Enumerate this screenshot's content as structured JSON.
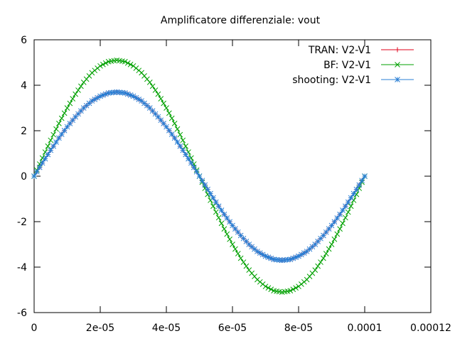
{
  "chart_data": {
    "type": "line",
    "title": "Amplificatore differenziale: vout",
    "xlabel": "",
    "ylabel": "",
    "xlim": [
      0,
      0.00012
    ],
    "ylim": [
      -6,
      6
    ],
    "x_ticks": [
      {
        "value": 0,
        "label": "0"
      },
      {
        "value": 2e-05,
        "label": "2e-05"
      },
      {
        "value": 4e-05,
        "label": "4e-05"
      },
      {
        "value": 6e-05,
        "label": "6e-05"
      },
      {
        "value": 8e-05,
        "label": "8e-05"
      },
      {
        "value": 0.0001,
        "label": "0.0001"
      },
      {
        "value": 0.00012,
        "label": "0.00012"
      }
    ],
    "y_ticks": [
      {
        "value": -6,
        "label": "-6"
      },
      {
        "value": -4,
        "label": "-4"
      },
      {
        "value": -2,
        "label": "-2"
      },
      {
        "value": 0,
        "label": "0"
      },
      {
        "value": 2,
        "label": "2"
      },
      {
        "value": 4,
        "label": "4"
      },
      {
        "value": 6,
        "label": "6"
      }
    ],
    "grid": false,
    "legend_position": "top-right",
    "series": [
      {
        "name": "TRAN: V2-V1",
        "color": "#e0001a",
        "marker": "plus",
        "x": [
          0,
          2.5e-06,
          5e-06,
          7.5e-06,
          1e-05,
          1.25e-05,
          1.5e-05,
          1.75e-05,
          2e-05,
          2.25e-05,
          2.5e-05,
          2.75e-05,
          3e-05,
          3.25e-05,
          3.5e-05,
          3.75e-05,
          4e-05,
          4.25e-05,
          4.5e-05,
          4.75e-05,
          5e-05,
          5.25e-05,
          5.5e-05,
          5.75e-05,
          6e-05,
          6.25e-05,
          6.5e-05,
          6.75e-05,
          7e-05,
          7.25e-05,
          7.5e-05,
          7.75e-05,
          8e-05,
          8.25e-05,
          8.5e-05,
          8.75e-05,
          9e-05,
          9.25e-05,
          9.5e-05,
          9.75e-05,
          0.0001
        ],
        "y": [
          0,
          0.58,
          1.14,
          1.68,
          2.17,
          2.61,
          3.0,
          3.31,
          3.52,
          3.66,
          3.7,
          3.66,
          3.52,
          3.31,
          3.0,
          2.61,
          2.17,
          1.68,
          1.14,
          0.58,
          0,
          -0.58,
          -1.14,
          -1.68,
          -2.17,
          -2.61,
          -3.0,
          -3.31,
          -3.52,
          -3.66,
          -3.7,
          -3.66,
          -3.52,
          -3.31,
          -3.0,
          -2.61,
          -2.17,
          -1.68,
          -1.14,
          -0.58,
          0
        ]
      },
      {
        "name": "BF: V2-V1",
        "color": "#00a000",
        "marker": "cross",
        "x": [
          0,
          2.5e-06,
          5e-06,
          7.5e-06,
          1e-05,
          1.25e-05,
          1.5e-05,
          1.75e-05,
          2e-05,
          2.25e-05,
          2.5e-05,
          2.75e-05,
          3e-05,
          3.25e-05,
          3.5e-05,
          3.75e-05,
          4e-05,
          4.25e-05,
          4.5e-05,
          4.75e-05,
          5e-05,
          5.25e-05,
          5.5e-05,
          5.75e-05,
          6e-05,
          6.25e-05,
          6.5e-05,
          6.75e-05,
          7e-05,
          7.25e-05,
          7.5e-05,
          7.75e-05,
          8e-05,
          8.25e-05,
          8.5e-05,
          8.75e-05,
          9e-05,
          9.25e-05,
          9.5e-05,
          9.75e-05,
          0.0001
        ],
        "y": [
          0,
          0.8,
          1.58,
          2.32,
          3.0,
          3.61,
          4.13,
          4.55,
          4.85,
          5.04,
          5.1,
          5.04,
          4.85,
          4.55,
          4.13,
          3.61,
          3.0,
          2.32,
          1.58,
          0.8,
          0,
          -0.8,
          -1.58,
          -2.32,
          -3.0,
          -3.61,
          -4.13,
          -4.55,
          -4.85,
          -5.04,
          -5.1,
          -5.04,
          -4.85,
          -4.55,
          -4.13,
          -3.61,
          -3.0,
          -2.32,
          -1.58,
          -0.8,
          0
        ]
      },
      {
        "name": "shooting: V2-V1",
        "color": "#2a7fd4",
        "marker": "star",
        "x": [
          0,
          2.5e-06,
          5e-06,
          7.5e-06,
          1e-05,
          1.25e-05,
          1.5e-05,
          1.75e-05,
          2e-05,
          2.25e-05,
          2.5e-05,
          2.75e-05,
          3e-05,
          3.25e-05,
          3.5e-05,
          3.75e-05,
          4e-05,
          4.25e-05,
          4.5e-05,
          4.75e-05,
          5e-05,
          5.25e-05,
          5.5e-05,
          5.75e-05,
          6e-05,
          6.25e-05,
          6.5e-05,
          6.75e-05,
          7e-05,
          7.25e-05,
          7.5e-05,
          7.75e-05,
          8e-05,
          8.25e-05,
          8.5e-05,
          8.75e-05,
          9e-05,
          9.25e-05,
          9.5e-05,
          9.75e-05,
          0.0001
        ],
        "y": [
          0,
          0.58,
          1.14,
          1.68,
          2.17,
          2.61,
          3.0,
          3.31,
          3.52,
          3.66,
          3.7,
          3.66,
          3.52,
          3.31,
          3.0,
          2.61,
          2.17,
          1.68,
          1.14,
          0.58,
          0,
          -0.58,
          -1.14,
          -1.68,
          -2.17,
          -2.61,
          -3.0,
          -3.31,
          -3.52,
          -3.66,
          -3.7,
          -3.66,
          -3.52,
          -3.31,
          -3.0,
          -2.61,
          -2.17,
          -1.68,
          -1.14,
          -0.58,
          0
        ]
      }
    ]
  }
}
